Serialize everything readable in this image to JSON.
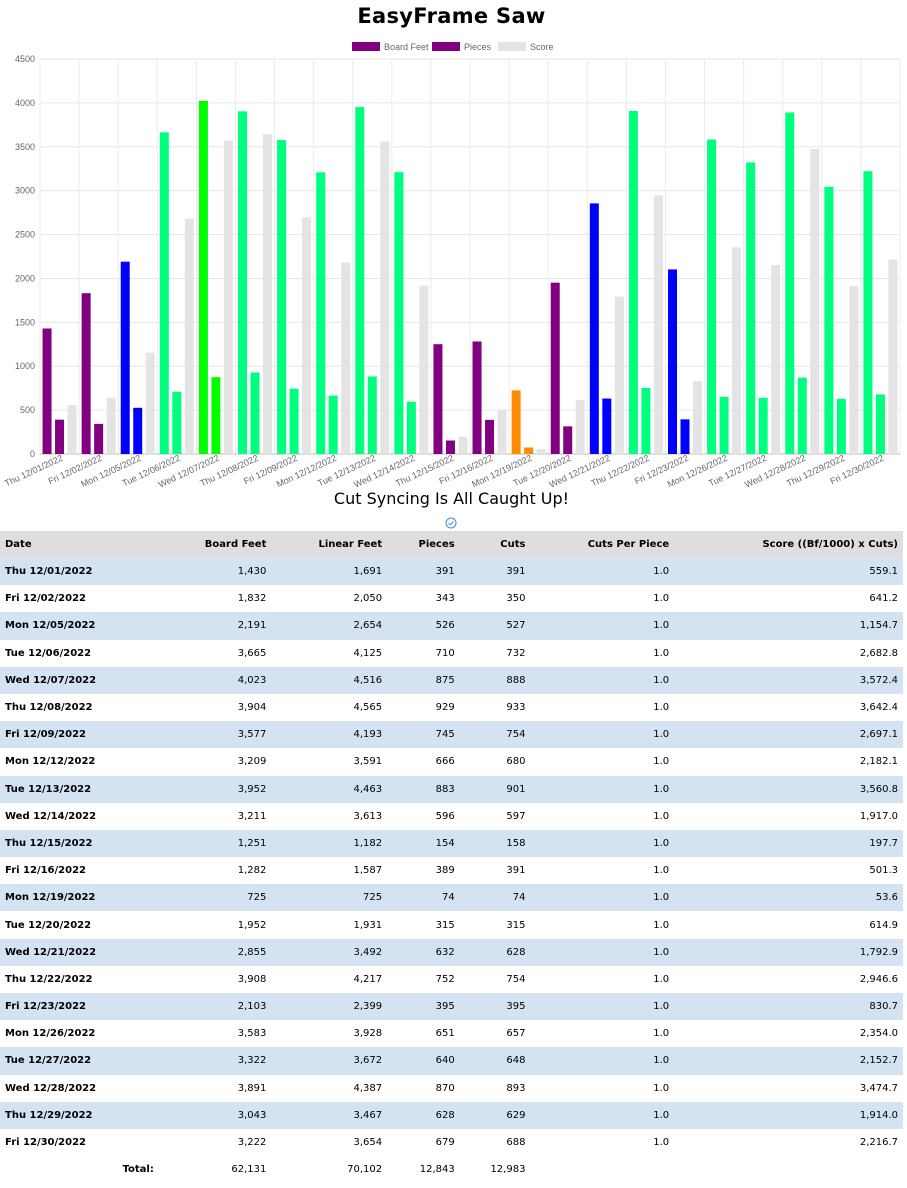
{
  "page": {
    "title": "EasyFrame Saw",
    "sync_status": "Cut Syncing Is All Caught Up!",
    "sync_icon": "check-circle-icon"
  },
  "colors": {
    "board_feet_purple": "#800080",
    "board_feet_blue": "#0000ff",
    "board_feet_green": "#00ff7f",
    "board_feet_brightgreen": "#00ff00",
    "board_feet_orange": "#ff8c00",
    "score": "#e4e4e4",
    "row_alt": "#d3e3f2",
    "header_bg": "#dedede"
  },
  "chart_data": {
    "type": "bar",
    "legend": [
      "Board Feet",
      "Pieces",
      "Score"
    ],
    "legend_position": "top",
    "ylim": [
      0,
      4500
    ],
    "yticks": [
      0,
      500,
      1000,
      1500,
      2000,
      2500,
      3000,
      3500,
      4000,
      4500
    ],
    "categories": [
      "Thu 12/01/2022",
      "Fri 12/02/2022",
      "Mon 12/05/2022",
      "Tue 12/06/2022",
      "Wed 12/07/2022",
      "Thu 12/08/2022",
      "Fri 12/09/2022",
      "Mon 12/12/2022",
      "Tue 12/13/2022",
      "Wed 12/14/2022",
      "Thu 12/15/2022",
      "Fri 12/16/2022",
      "Mon 12/19/2022",
      "Tue 12/20/2022",
      "Wed 12/21/2022",
      "Thu 12/22/2022",
      "Fri 12/23/2022",
      "Mon 12/26/2022",
      "Tue 12/27/2022",
      "Wed 12/28/2022",
      "Thu 12/29/2022",
      "Fri 12/30/2022"
    ],
    "bar_colors": [
      "#800080",
      "#800080",
      "#0000ff",
      "#00ff7f",
      "#00ff00",
      "#00ff7f",
      "#00ff7f",
      "#00ff7f",
      "#00ff7f",
      "#00ff7f",
      "#800080",
      "#800080",
      "#ff8c00",
      "#800080",
      "#0000ff",
      "#00ff7f",
      "#0000ff",
      "#00ff7f",
      "#00ff7f",
      "#00ff7f",
      "#00ff7f",
      "#00ff7f"
    ],
    "series": [
      {
        "name": "Board Feet",
        "values": [
          1430,
          1832,
          2191,
          3665,
          4023,
          3904,
          3577,
          3209,
          3952,
          3211,
          1251,
          1282,
          725,
          1952,
          2855,
          3908,
          2103,
          3583,
          3322,
          3891,
          3043,
          3222
        ]
      },
      {
        "name": "Pieces",
        "values": [
          391,
          343,
          526,
          710,
          875,
          929,
          745,
          666,
          883,
          596,
          154,
          389,
          74,
          315,
          632,
          752,
          395,
          651,
          640,
          870,
          628,
          679
        ]
      },
      {
        "name": "Score",
        "values": [
          559.1,
          641.2,
          1154.7,
          2682.8,
          3572.4,
          3642.4,
          2697.1,
          2182.1,
          3560.8,
          1917.0,
          197.7,
          501.3,
          53.6,
          614.9,
          1792.9,
          2946.6,
          830.7,
          2354.0,
          2152.7,
          3474.7,
          1914.0,
          2216.7
        ]
      }
    ]
  },
  "table": {
    "headers": {
      "date": "Date",
      "board_feet": "Board Feet",
      "linear_feet": "Linear Feet",
      "pieces": "Pieces",
      "cuts": "Cuts",
      "cuts_per_piece": "Cuts Per Piece",
      "score": "Score ((Bf/1000) x Cuts)"
    },
    "rows": [
      {
        "date": "Thu 12/01/2022",
        "board_feet": "1,430",
        "linear_feet": "1,691",
        "pieces": "391",
        "cuts": "391",
        "cpp": "1.0",
        "score": "559.1"
      },
      {
        "date": "Fri 12/02/2022",
        "board_feet": "1,832",
        "linear_feet": "2,050",
        "pieces": "343",
        "cuts": "350",
        "cpp": "1.0",
        "score": "641.2"
      },
      {
        "date": "Mon 12/05/2022",
        "board_feet": "2,191",
        "linear_feet": "2,654",
        "pieces": "526",
        "cuts": "527",
        "cpp": "1.0",
        "score": "1,154.7"
      },
      {
        "date": "Tue 12/06/2022",
        "board_feet": "3,665",
        "linear_feet": "4,125",
        "pieces": "710",
        "cuts": "732",
        "cpp": "1.0",
        "score": "2,682.8"
      },
      {
        "date": "Wed 12/07/2022",
        "board_feet": "4,023",
        "linear_feet": "4,516",
        "pieces": "875",
        "cuts": "888",
        "cpp": "1.0",
        "score": "3,572.4"
      },
      {
        "date": "Thu 12/08/2022",
        "board_feet": "3,904",
        "linear_feet": "4,565",
        "pieces": "929",
        "cuts": "933",
        "cpp": "1.0",
        "score": "3,642.4"
      },
      {
        "date": "Fri 12/09/2022",
        "board_feet": "3,577",
        "linear_feet": "4,193",
        "pieces": "745",
        "cuts": "754",
        "cpp": "1.0",
        "score": "2,697.1"
      },
      {
        "date": "Mon 12/12/2022",
        "board_feet": "3,209",
        "linear_feet": "3,591",
        "pieces": "666",
        "cuts": "680",
        "cpp": "1.0",
        "score": "2,182.1"
      },
      {
        "date": "Tue 12/13/2022",
        "board_feet": "3,952",
        "linear_feet": "4,463",
        "pieces": "883",
        "cuts": "901",
        "cpp": "1.0",
        "score": "3,560.8"
      },
      {
        "date": "Wed 12/14/2022",
        "board_feet": "3,211",
        "linear_feet": "3,613",
        "pieces": "596",
        "cuts": "597",
        "cpp": "1.0",
        "score": "1,917.0"
      },
      {
        "date": "Thu 12/15/2022",
        "board_feet": "1,251",
        "linear_feet": "1,182",
        "pieces": "154",
        "cuts": "158",
        "cpp": "1.0",
        "score": "197.7"
      },
      {
        "date": "Fri 12/16/2022",
        "board_feet": "1,282",
        "linear_feet": "1,587",
        "pieces": "389",
        "cuts": "391",
        "cpp": "1.0",
        "score": "501.3"
      },
      {
        "date": "Mon 12/19/2022",
        "board_feet": "725",
        "linear_feet": "725",
        "pieces": "74",
        "cuts": "74",
        "cpp": "1.0",
        "score": "53.6"
      },
      {
        "date": "Tue 12/20/2022",
        "board_feet": "1,952",
        "linear_feet": "1,931",
        "pieces": "315",
        "cuts": "315",
        "cpp": "1.0",
        "score": "614.9"
      },
      {
        "date": "Wed 12/21/2022",
        "board_feet": "2,855",
        "linear_feet": "3,492",
        "pieces": "632",
        "cuts": "628",
        "cpp": "1.0",
        "score": "1,792.9"
      },
      {
        "date": "Thu 12/22/2022",
        "board_feet": "3,908",
        "linear_feet": "4,217",
        "pieces": "752",
        "cuts": "754",
        "cpp": "1.0",
        "score": "2,946.6"
      },
      {
        "date": "Fri 12/23/2022",
        "board_feet": "2,103",
        "linear_feet": "2,399",
        "pieces": "395",
        "cuts": "395",
        "cpp": "1.0",
        "score": "830.7"
      },
      {
        "date": "Mon 12/26/2022",
        "board_feet": "3,583",
        "linear_feet": "3,928",
        "pieces": "651",
        "cuts": "657",
        "cpp": "1.0",
        "score": "2,354.0"
      },
      {
        "date": "Tue 12/27/2022",
        "board_feet": "3,322",
        "linear_feet": "3,672",
        "pieces": "640",
        "cuts": "648",
        "cpp": "1.0",
        "score": "2,152.7"
      },
      {
        "date": "Wed 12/28/2022",
        "board_feet": "3,891",
        "linear_feet": "4,387",
        "pieces": "870",
        "cuts": "893",
        "cpp": "1.0",
        "score": "3,474.7"
      },
      {
        "date": "Thu 12/29/2022",
        "board_feet": "3,043",
        "linear_feet": "3,467",
        "pieces": "628",
        "cuts": "629",
        "cpp": "1.0",
        "score": "1,914.0"
      },
      {
        "date": "Fri 12/30/2022",
        "board_feet": "3,222",
        "linear_feet": "3,654",
        "pieces": "679",
        "cuts": "688",
        "cpp": "1.0",
        "score": "2,216.7"
      }
    ],
    "totals": {
      "label": "Total:",
      "board_feet": "62,131",
      "linear_feet": "70,102",
      "pieces": "12,843",
      "cuts": "12,983"
    }
  }
}
